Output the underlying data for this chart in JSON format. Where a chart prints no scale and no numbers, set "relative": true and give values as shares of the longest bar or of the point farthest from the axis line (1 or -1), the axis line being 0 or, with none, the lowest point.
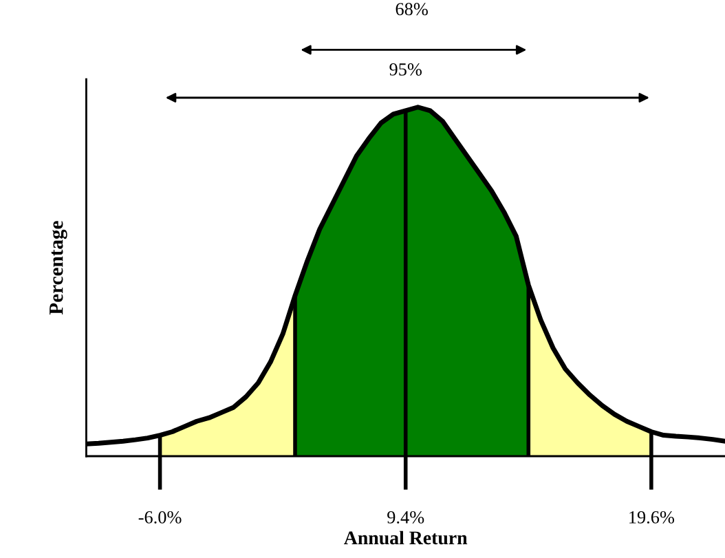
{
  "chart_data": {
    "type": "area",
    "relative": true,
    "xlabel": "Annual Return",
    "ylabel": "Percentage",
    "categories": [
      null,
      null,
      null,
      null,
      null,
      null,
      "-6.0%",
      null,
      null,
      null,
      null,
      null,
      null,
      null,
      null,
      null,
      null,
      null,
      null,
      null,
      null,
      null,
      null,
      null,
      null,
      null,
      "9.4%",
      null,
      null,
      null,
      null,
      null,
      null,
      null,
      null,
      null,
      null,
      null,
      null,
      null,
      null,
      null,
      null,
      null,
      null,
      null,
      "19.6%",
      null,
      null,
      null,
      null,
      null,
      null
    ],
    "series": [
      {
        "color": "#ffff9f",
        "values": [
          null,
          null,
          null,
          null,
          null,
          null,
          0.06,
          0.07,
          0.085,
          0.1,
          0.11,
          0.125,
          0.14,
          0.17,
          0.21,
          0.27,
          0.35,
          0.46,
          0.56,
          0.65,
          0.72,
          0.79,
          0.86,
          0.91,
          0.955,
          0.98,
          0.99,
          1.0,
          0.99,
          0.96,
          0.91,
          0.86,
          0.81,
          0.76,
          0.7,
          0.63,
          0.49,
          0.39,
          0.31,
          0.25,
          0.21,
          0.175,
          0.145,
          0.12,
          0.1,
          0.085,
          0.07,
          null,
          null,
          null,
          null,
          null,
          null
        ]
      },
      {
        "color": "#008000",
        "values": [
          null,
          null,
          null,
          null,
          null,
          null,
          null,
          null,
          null,
          null,
          null,
          null,
          null,
          null,
          null,
          null,
          null,
          0.46,
          0.56,
          0.65,
          0.72,
          0.79,
          0.86,
          0.91,
          0.955,
          0.98,
          0.99,
          1.0,
          0.99,
          0.96,
          0.91,
          0.86,
          0.81,
          0.76,
          0.7,
          0.63,
          0.49,
          null,
          null,
          null,
          null,
          null,
          null,
          null,
          null,
          null,
          null,
          null,
          null,
          null,
          null,
          null,
          null
        ]
      },
      {
        "type": "line",
        "color": "#000000",
        "values": [
          0.035,
          0.037,
          0.04,
          0.043,
          0.047,
          0.052,
          0.06,
          0.07,
          0.085,
          0.1,
          0.11,
          0.125,
          0.14,
          0.17,
          0.21,
          0.27,
          0.35,
          0.46,
          0.56,
          0.65,
          0.72,
          0.79,
          0.86,
          0.91,
          0.955,
          0.98,
          0.99,
          1.0,
          0.99,
          0.96,
          0.91,
          0.86,
          0.81,
          0.76,
          0.7,
          0.63,
          0.49,
          0.39,
          0.31,
          0.25,
          0.21,
          0.175,
          0.145,
          0.12,
          0.1,
          0.085,
          0.07,
          0.06,
          0.057,
          0.055,
          0.052,
          0.048,
          0.043
        ]
      }
    ],
    "ref_lines": [
      {
        "axis": "x",
        "value": "9.4%",
        "color": "#000000"
      }
    ],
    "annotations": [
      "68%",
      "95%"
    ]
  }
}
